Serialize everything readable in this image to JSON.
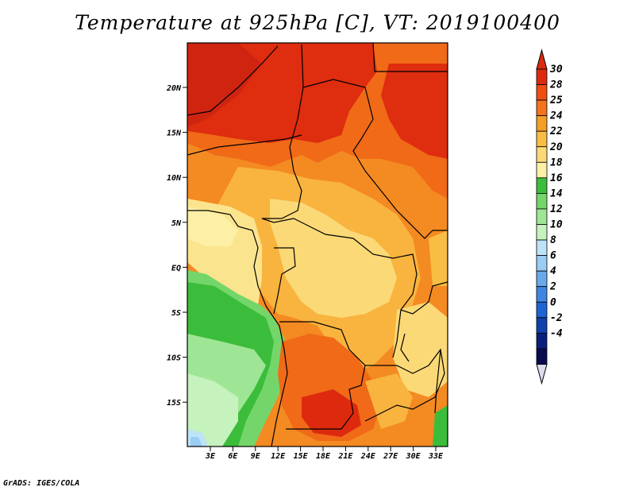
{
  "title": "Temperature at 925hPa [C], VT: 2019100400",
  "credit": "GrADS: IGES/COLA",
  "lat_ticks": [
    "20N",
    "15N",
    "10N",
    "5N",
    "EQ",
    "5S",
    "10S",
    "15S"
  ],
  "lon_ticks": [
    "3E",
    "6E",
    "9E",
    "12E",
    "15E",
    "18E",
    "21E",
    "24E",
    "27E",
    "30E",
    "33E"
  ],
  "colorbar": {
    "labels": [
      "30",
      "28",
      "25",
      "24",
      "22",
      "20",
      "18",
      "16",
      "14",
      "12",
      "10",
      "8",
      "6",
      "4",
      "2",
      "0",
      "-2",
      "-4"
    ],
    "colors": [
      "#dd2a0e",
      "#f04d12",
      "#f3741c",
      "#f59e26",
      "#f8bd45",
      "#fbd977",
      "#fdf0a6",
      "#3bbd3b",
      "#74d66a",
      "#9ee695",
      "#c6f2bd",
      "#bde3f8",
      "#99cdf3",
      "#6aaaeb",
      "#3f86e3",
      "#1f64d3",
      "#0e41ad",
      "#0a1f7d",
      "#0a0a50"
    ],
    "top_color": "#dd2a0e",
    "bottom_color": "#dcdcf0"
  }
}
